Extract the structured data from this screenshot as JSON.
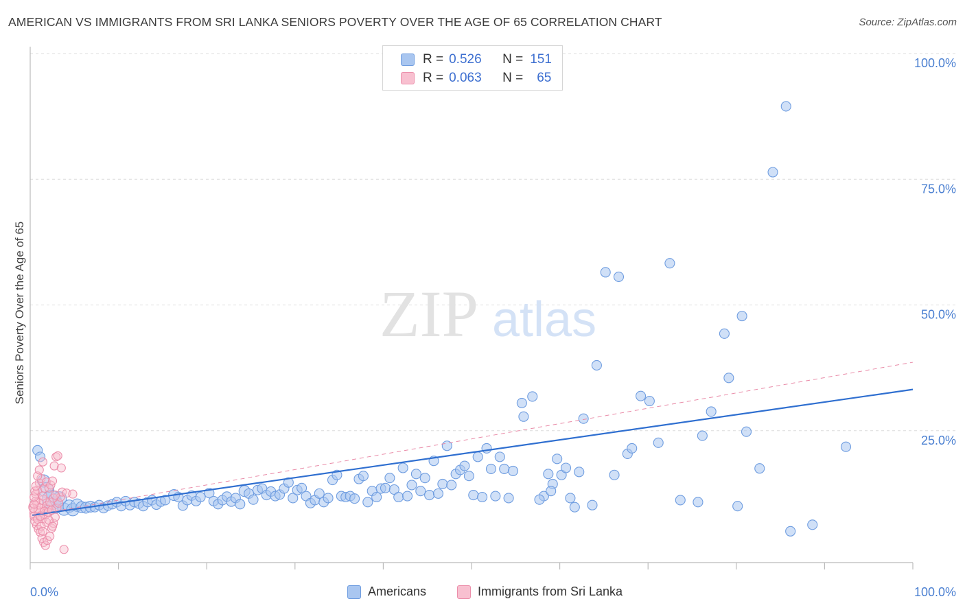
{
  "title": "AMERICAN VS IMMIGRANTS FROM SRI LANKA SENIORS POVERTY OVER THE AGE OF 65 CORRELATION CHART",
  "source": "Source: ZipAtlas.com",
  "watermark": {
    "zip": "ZIP",
    "atlas": "atlas"
  },
  "legend": {
    "rows": [
      {
        "r_label": "R =",
        "r_value": "0.526",
        "n_label": "N =",
        "n_value": "151",
        "color": "#a9c6f0",
        "border": "#6f9de0"
      },
      {
        "r_label": "R =",
        "r_value": "0.063",
        "n_label": "N =",
        "n_value": "65",
        "color": "#f8c0d0",
        "border": "#ec8fab"
      }
    ]
  },
  "bottom_legend": [
    {
      "label": "Americans",
      "color": "#a9c6f0",
      "border": "#6f9de0"
    },
    {
      "label": "Immigrants from Sri Lanka",
      "color": "#f8c0d0",
      "border": "#ec8fab"
    }
  ],
  "chart_data": {
    "type": "scatter",
    "title": "AMERICAN VS IMMIGRANTS FROM SRI LANKA SENIORS POVERTY OVER THE AGE OF 65 CORRELATION CHART",
    "xlabel": "",
    "ylabel": "Seniors Poverty Over the Age of 65",
    "xlim": [
      0,
      100
    ],
    "ylim": [
      0,
      100
    ],
    "x_ticks": [
      {
        "value": 0,
        "label": "0.0%"
      },
      {
        "value": 100,
        "label": "100.0%"
      }
    ],
    "y_ticks": [
      {
        "value": 25,
        "label": "25.0%"
      },
      {
        "value": 50,
        "label": "50.0%"
      },
      {
        "value": 75,
        "label": "75.0%"
      },
      {
        "value": 100,
        "label": "100.0%"
      }
    ],
    "grid": "horizontal dashed",
    "legend_position": "top-center",
    "series": [
      {
        "name": "Americans",
        "color": "#a9c6f0",
        "stroke": "#6f9de0",
        "trend": {
          "x": [
            0,
            100
          ],
          "y": [
            8.2,
            33.2
          ],
          "color": "#2f6fd0",
          "style": "solid"
        },
        "points": [
          [
            0.6,
            21.1,
            7
          ],
          [
            0.9,
            19.8,
            7
          ],
          [
            1.3,
            15.0,
            9
          ],
          [
            1.6,
            13.2,
            11
          ],
          [
            2.2,
            11.2,
            14
          ],
          [
            2.6,
            10.2,
            12
          ],
          [
            3.1,
            11.5,
            10
          ],
          [
            3.6,
            9.4,
            9
          ],
          [
            4.2,
            10.0,
            9
          ],
          [
            4.6,
            9.3,
            9
          ],
          [
            5.1,
            10.2,
            9
          ],
          [
            5.6,
            9.8,
            8
          ],
          [
            6.1,
            9.7,
            8
          ],
          [
            6.6,
            9.9,
            8
          ],
          [
            7.1,
            9.8,
            7
          ],
          [
            7.6,
            10.2,
            7
          ],
          [
            8.1,
            9.6,
            7
          ],
          [
            8.6,
            10.1,
            7
          ],
          [
            9.1,
            10.4,
            7
          ],
          [
            9.6,
            10.8,
            7
          ],
          [
            10.1,
            10.0,
            7
          ],
          [
            10.6,
            11.0,
            7
          ],
          [
            11.1,
            10.2,
            7
          ],
          [
            11.6,
            10.8,
            7
          ],
          [
            12.1,
            10.5,
            7
          ],
          [
            12.6,
            10.0,
            7
          ],
          [
            13.1,
            10.8,
            7
          ],
          [
            13.6,
            11.2,
            7
          ],
          [
            14.1,
            10.3,
            7
          ],
          [
            14.6,
            10.9,
            7
          ],
          [
            15.1,
            11.2,
            7
          ],
          [
            16.1,
            12.2,
            8
          ],
          [
            16.6,
            11.8,
            7
          ],
          [
            17.1,
            10.1,
            7
          ],
          [
            17.6,
            11.2,
            7
          ],
          [
            18.1,
            12.1,
            7
          ],
          [
            18.6,
            11.0,
            7
          ],
          [
            19.1,
            11.8,
            7
          ],
          [
            20.1,
            12.6,
            7
          ],
          [
            20.6,
            11.0,
            7
          ],
          [
            21.1,
            10.4,
            7
          ],
          [
            21.6,
            11.2,
            7
          ],
          [
            22.1,
            11.9,
            7
          ],
          [
            22.6,
            10.9,
            7
          ],
          [
            23.1,
            11.6,
            7
          ],
          [
            23.6,
            10.4,
            7
          ],
          [
            24.1,
            13.0,
            8
          ],
          [
            24.6,
            12.5,
            7
          ],
          [
            25.1,
            11.3,
            7
          ],
          [
            25.6,
            13.2,
            7
          ],
          [
            26.1,
            13.5,
            7
          ],
          [
            26.6,
            12.2,
            7
          ],
          [
            27.1,
            12.9,
            7
          ],
          [
            27.6,
            12.0,
            7
          ],
          [
            28.1,
            12.3,
            7
          ],
          [
            28.6,
            13.5,
            7
          ],
          [
            29.1,
            14.7,
            7
          ],
          [
            29.6,
            11.6,
            7
          ],
          [
            30.1,
            13.2,
            7
          ],
          [
            30.6,
            13.6,
            7
          ],
          [
            31.1,
            12.0,
            7
          ],
          [
            31.6,
            10.6,
            7
          ],
          [
            32.1,
            11.2,
            7
          ],
          [
            32.6,
            12.5,
            7
          ],
          [
            33.1,
            10.8,
            7
          ],
          [
            33.6,
            11.6,
            7
          ],
          [
            34.1,
            15.2,
            7
          ],
          [
            34.6,
            16.2,
            7
          ],
          [
            35.1,
            12.0,
            7
          ],
          [
            35.6,
            11.8,
            7
          ],
          [
            36.1,
            12.0,
            7
          ],
          [
            36.6,
            11.5,
            7
          ],
          [
            37.1,
            15.4,
            7
          ],
          [
            37.6,
            16.0,
            7
          ],
          [
            38.1,
            10.8,
            7
          ],
          [
            38.6,
            13.0,
            7
          ],
          [
            39.1,
            11.8,
            7
          ],
          [
            39.6,
            13.5,
            7
          ],
          [
            40.1,
            13.6,
            7
          ],
          [
            40.6,
            15.6,
            7
          ],
          [
            41.1,
            13.3,
            7
          ],
          [
            41.6,
            11.8,
            7
          ],
          [
            42.1,
            17.6,
            7
          ],
          [
            42.6,
            12.0,
            7
          ],
          [
            43.1,
            14.2,
            7
          ],
          [
            43.6,
            16.4,
            7
          ],
          [
            44.1,
            13.0,
            7
          ],
          [
            44.6,
            15.6,
            7
          ],
          [
            45.1,
            12.2,
            7
          ],
          [
            45.6,
            19.0,
            7
          ],
          [
            46.1,
            12.5,
            7
          ],
          [
            46.6,
            14.4,
            7
          ],
          [
            47.1,
            22.0,
            7
          ],
          [
            47.6,
            14.2,
            7
          ],
          [
            48.1,
            16.4,
            7
          ],
          [
            48.6,
            17.2,
            7
          ],
          [
            49.1,
            18.0,
            7
          ],
          [
            49.6,
            16.0,
            7
          ],
          [
            50.1,
            12.2,
            7
          ],
          [
            50.6,
            19.8,
            7
          ],
          [
            51.1,
            11.8,
            7
          ],
          [
            51.6,
            21.5,
            7
          ],
          [
            52.1,
            17.4,
            7
          ],
          [
            52.6,
            12.0,
            7
          ],
          [
            53.1,
            19.8,
            7
          ],
          [
            53.6,
            17.4,
            7
          ],
          [
            54.1,
            11.6,
            7
          ],
          [
            54.6,
            17.0,
            7
          ],
          [
            55.6,
            30.5,
            7
          ],
          [
            55.8,
            27.8,
            7
          ],
          [
            56.8,
            31.8,
            7
          ],
          [
            58.1,
            12.0,
            7
          ],
          [
            58.6,
            16.4,
            7
          ],
          [
            59.1,
            14.4,
            7
          ],
          [
            59.6,
            19.4,
            7
          ],
          [
            60.1,
            16.2,
            7
          ],
          [
            60.6,
            17.6,
            7
          ],
          [
            61.6,
            9.8,
            7
          ],
          [
            62.6,
            27.4,
            7
          ],
          [
            65.1,
            56.5,
            7
          ],
          [
            66.6,
            55.6,
            7
          ],
          [
            67.6,
            20.4,
            7
          ],
          [
            68.1,
            21.5,
            7
          ],
          [
            69.1,
            31.9,
            7
          ],
          [
            70.1,
            30.9,
            7
          ],
          [
            71.1,
            22.6,
            7
          ],
          [
            72.4,
            58.3,
            7
          ],
          [
            73.6,
            11.2,
            7
          ],
          [
            75.6,
            10.8,
            7
          ],
          [
            76.1,
            24.0,
            7
          ],
          [
            77.1,
            28.8,
            7
          ],
          [
            78.6,
            44.3,
            7
          ],
          [
            79.1,
            35.5,
            7
          ],
          [
            80.1,
            10.0,
            7
          ],
          [
            80.6,
            47.8,
            7
          ],
          [
            81.1,
            24.8,
            7
          ],
          [
            82.6,
            17.5,
            7
          ],
          [
            84.1,
            76.4,
            7
          ],
          [
            85.6,
            89.5,
            7
          ],
          [
            86.1,
            5.0,
            7
          ],
          [
            88.6,
            6.3,
            7
          ],
          [
            92.4,
            21.8,
            7
          ],
          [
            63.6,
            10.2,
            7
          ],
          [
            64.1,
            38.0,
            7
          ],
          [
            66.1,
            16.2,
            7
          ],
          [
            57.6,
            11.3,
            7
          ],
          [
            62.1,
            16.8,
            7
          ],
          [
            61.1,
            11.6,
            7
          ],
          [
            58.9,
            13.0,
            7
          ]
        ]
      },
      {
        "name": "Immigrants from Sri Lanka",
        "color": "#f8c0d0",
        "stroke": "#ec8fab",
        "trend": {
          "x": [
            0,
            100
          ],
          "y": [
            8.2,
            38.6
          ],
          "color": "#e98aa7",
          "style": "dashed"
        },
        "points": [
          [
            0.3,
            9.8,
            9
          ],
          [
            0.5,
            8.6,
            10
          ],
          [
            0.7,
            10.5,
            8
          ],
          [
            0.9,
            9.2,
            9
          ],
          [
            1.1,
            7.8,
            8
          ],
          [
            1.3,
            11.2,
            7
          ],
          [
            1.5,
            8.4,
            7
          ],
          [
            1.7,
            10.0,
            7
          ],
          [
            0.4,
            12.4,
            6
          ],
          [
            0.6,
            13.2,
            6
          ],
          [
            0.8,
            14.6,
            6
          ],
          [
            1.0,
            15.5,
            6
          ],
          [
            1.2,
            12.0,
            6
          ],
          [
            1.4,
            13.6,
            6
          ],
          [
            1.6,
            14.8,
            6
          ],
          [
            1.8,
            9.4,
            6
          ],
          [
            0.5,
            6.2,
            6
          ],
          [
            0.7,
            5.4,
            6
          ],
          [
            0.9,
            4.8,
            6
          ],
          [
            1.1,
            3.6,
            6
          ],
          [
            1.3,
            2.8,
            6
          ],
          [
            1.5,
            2.2,
            6
          ],
          [
            1.7,
            3.2,
            6
          ],
          [
            2.0,
            4.0,
            6
          ],
          [
            2.2,
            5.6,
            6
          ],
          [
            2.4,
            6.6,
            6
          ],
          [
            2.6,
            7.8,
            6
          ],
          [
            2.8,
            9.6,
            6
          ],
          [
            3.0,
            10.6,
            6
          ],
          [
            3.2,
            11.8,
            6
          ],
          [
            3.4,
            12.8,
            6
          ],
          [
            1.9,
            13.6,
            6
          ],
          [
            2.1,
            14.2,
            6
          ],
          [
            2.3,
            15.0,
            6
          ],
          [
            2.5,
            18.0,
            6
          ],
          [
            2.7,
            19.8,
            6
          ],
          [
            2.9,
            20.0,
            6
          ],
          [
            3.3,
            17.6,
            6
          ],
          [
            3.6,
            1.4,
            6
          ],
          [
            3.9,
            12.6,
            6
          ],
          [
            4.6,
            12.4,
            6
          ],
          [
            0.6,
            16.0,
            6
          ],
          [
            0.8,
            17.2,
            6
          ],
          [
            1.2,
            18.8,
            6
          ],
          [
            0.4,
            11.0,
            6
          ],
          [
            0.2,
            8.0,
            6
          ],
          [
            0.3,
            7.0,
            6
          ],
          [
            0.6,
            7.4,
            6
          ],
          [
            0.9,
            8.0,
            6
          ],
          [
            1.4,
            9.0,
            6
          ],
          [
            1.6,
            6.8,
            6
          ],
          [
            1.8,
            8.8,
            6
          ],
          [
            2.0,
            10.8,
            6
          ],
          [
            2.2,
            9.2,
            6
          ],
          [
            2.4,
            11.6,
            6
          ],
          [
            2.6,
            12.2,
            6
          ],
          [
            0.1,
            9.6,
            6
          ],
          [
            0.2,
            10.4,
            6
          ],
          [
            0.2,
            11.8,
            6
          ],
          [
            0.3,
            13.0,
            6
          ],
          [
            0.4,
            14.0,
            6
          ],
          [
            1.0,
            6.0,
            6
          ],
          [
            1.2,
            5.0,
            6
          ],
          [
            1.9,
            7.2,
            6
          ],
          [
            2.3,
            6.0,
            6
          ]
        ]
      }
    ]
  }
}
